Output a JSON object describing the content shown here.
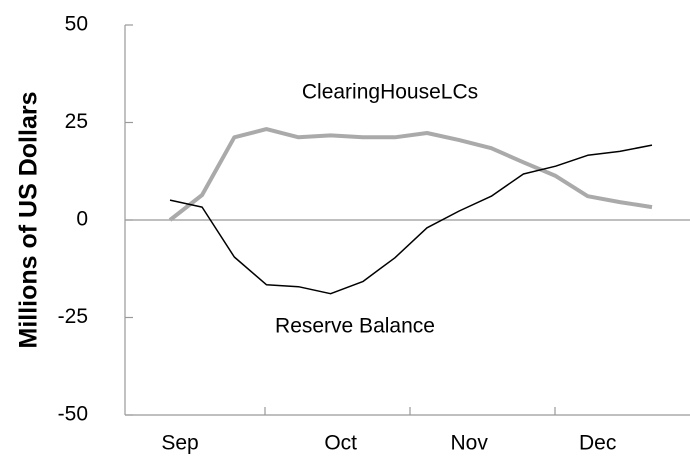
{
  "chart_data": {
    "type": "line",
    "ylabel": "Millions of US Dollars",
    "categories": [
      "Sep",
      null,
      null,
      null,
      null,
      "Oct",
      null,
      null,
      null,
      "Nov",
      null,
      null,
      null,
      "Dec",
      null,
      null
    ],
    "series": [
      {
        "name": "ClearingHouseLCs",
        "color": "#aaaaaa",
        "values": [
          0,
          6.4,
          21.2,
          23.3,
          21.2,
          21.7,
          21.2,
          21.2,
          22.3,
          20.5,
          18.4,
          14.8,
          11.3,
          6.1,
          4.6,
          3.3
        ]
      },
      {
        "name": "Reserve Balance",
        "color": "#000000",
        "values": [
          5.1,
          3.3,
          -9.5,
          -16.6,
          -17.1,
          -18.9,
          -15.8,
          -9.7,
          -2.0,
          2.3,
          6.1,
          11.8,
          13.8,
          16.6,
          17.6,
          19.2
        ]
      }
    ],
    "ylim": [
      -50,
      50
    ],
    "yticks": [
      -50,
      -25,
      0,
      25,
      50
    ]
  }
}
